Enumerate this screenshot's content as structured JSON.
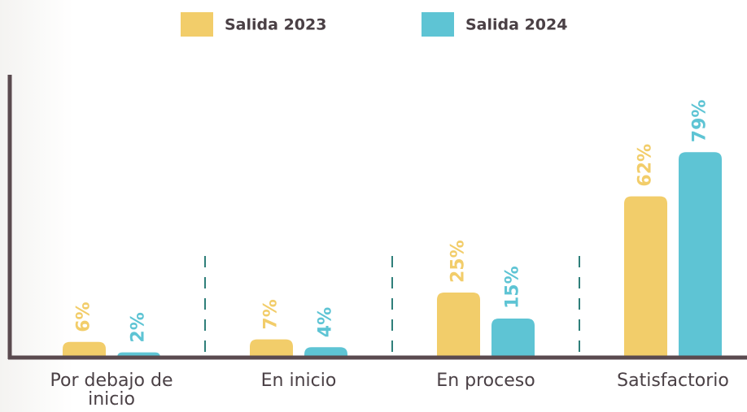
{
  "chart_data": {
    "type": "bar",
    "categories": [
      "Por debajo de inicio",
      "En inicio",
      "En proceso",
      "Satisfactorio"
    ],
    "series": [
      {
        "name": "Salida 2023",
        "color": "#f2cd6a",
        "values": [
          6,
          7,
          25,
          62
        ],
        "value_labels": [
          "6%",
          "7%",
          "25%",
          "62%"
        ]
      },
      {
        "name": "Salida 2024",
        "color": "#5ec4d4",
        "values": [
          2,
          4,
          15,
          79
        ],
        "value_labels": [
          "2%",
          "4%",
          "15%",
          "79%"
        ]
      }
    ],
    "ylim": [
      0,
      100
    ]
  }
}
